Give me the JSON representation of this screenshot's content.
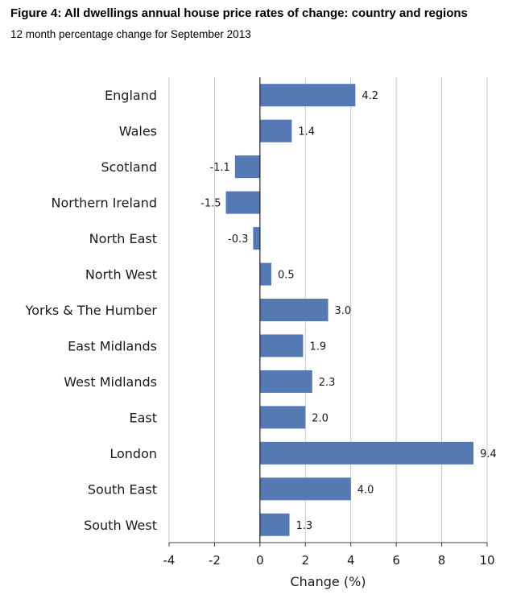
{
  "figure": {
    "title": "Figure 4: All dwellings annual house price rates of change: country and regions",
    "subtitle": "12 month percentage change for September 2013"
  },
  "chart_data": {
    "type": "bar",
    "orientation": "horizontal",
    "categories": [
      "England",
      "Wales",
      "Scotland",
      "Northern Ireland",
      "North East",
      "North West",
      "Yorks & The Humber",
      "East Midlands",
      "West Midlands",
      "East",
      "London",
      "South East",
      "South West"
    ],
    "values": [
      4.2,
      1.4,
      -1.1,
      -1.5,
      -0.3,
      0.5,
      3.0,
      1.9,
      2.3,
      2.0,
      9.4,
      4.0,
      1.3
    ],
    "value_labels": [
      "4.2",
      "1.4",
      "-1.1",
      "-1.5",
      "-0.3",
      "0.5",
      "3.0",
      "1.9",
      "2.3",
      "2.0",
      "9.4",
      "4.0",
      "1.3"
    ],
    "xlabel": "Change (%)",
    "ylabel": "",
    "xlim": [
      -4,
      10
    ],
    "xticks": [
      -4,
      -2,
      0,
      2,
      4,
      6,
      8,
      10
    ],
    "grid": true,
    "legend": "none",
    "bar_color": "#5579b2"
  }
}
